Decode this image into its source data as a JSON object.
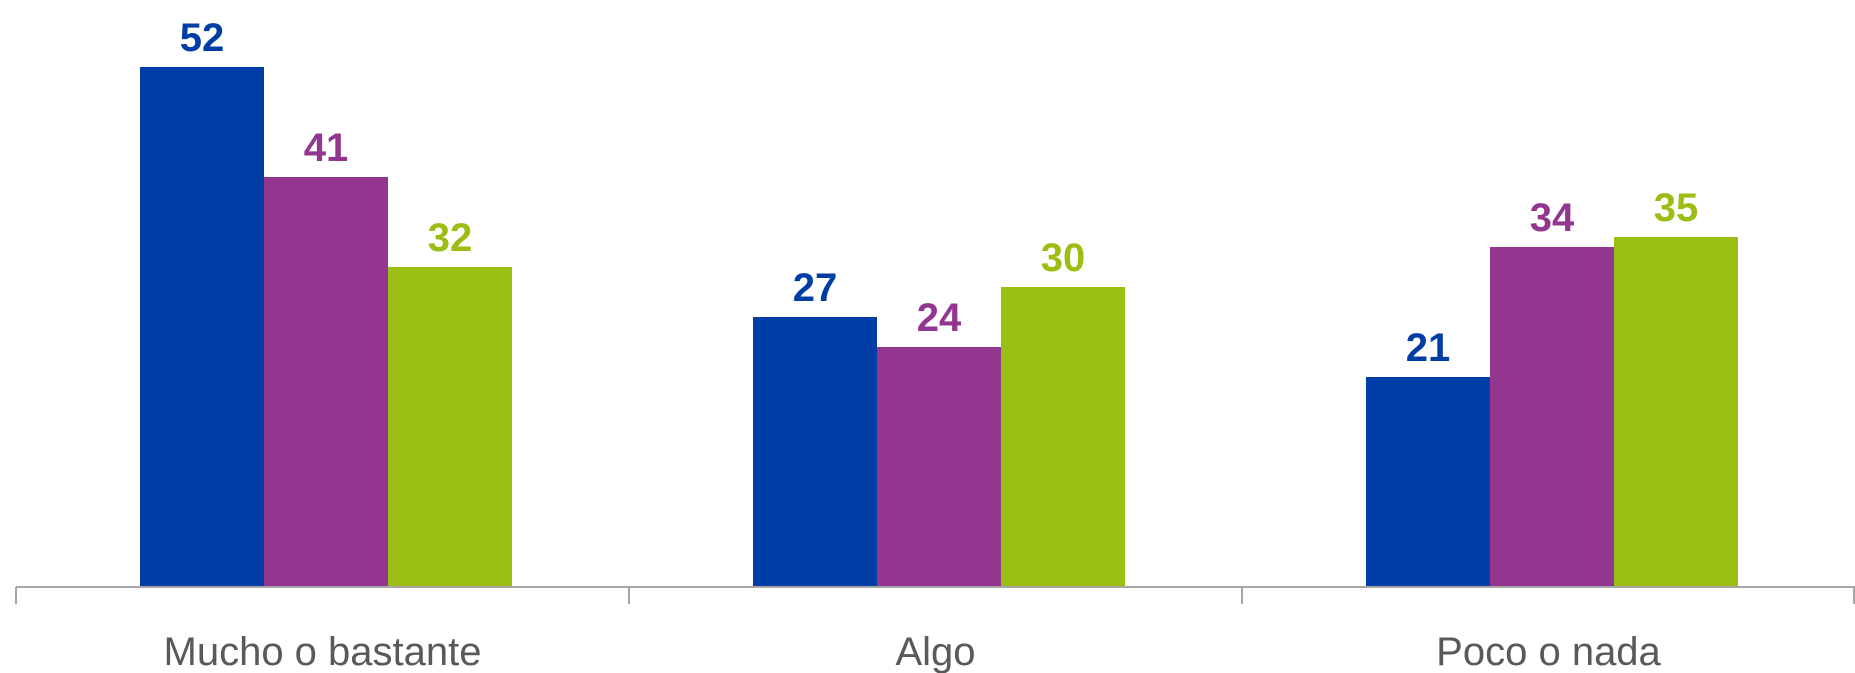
{
  "chart_data": {
    "type": "bar",
    "categories": [
      "Mucho o bastante",
      "Algo",
      "Poco o nada"
    ],
    "series": [
      {
        "values": [
          52,
          27,
          21
        ],
        "color": "#003DA5"
      },
      {
        "values": [
          41,
          24,
          34
        ],
        "color": "#93368F"
      },
      {
        "values": [
          32,
          30,
          35
        ],
        "color": "#9BBE14"
      }
    ],
    "ylim": [
      0,
      52
    ],
    "grid": false,
    "legend": "none",
    "data_labels": true,
    "axis_color": "#A6A6A6"
  }
}
